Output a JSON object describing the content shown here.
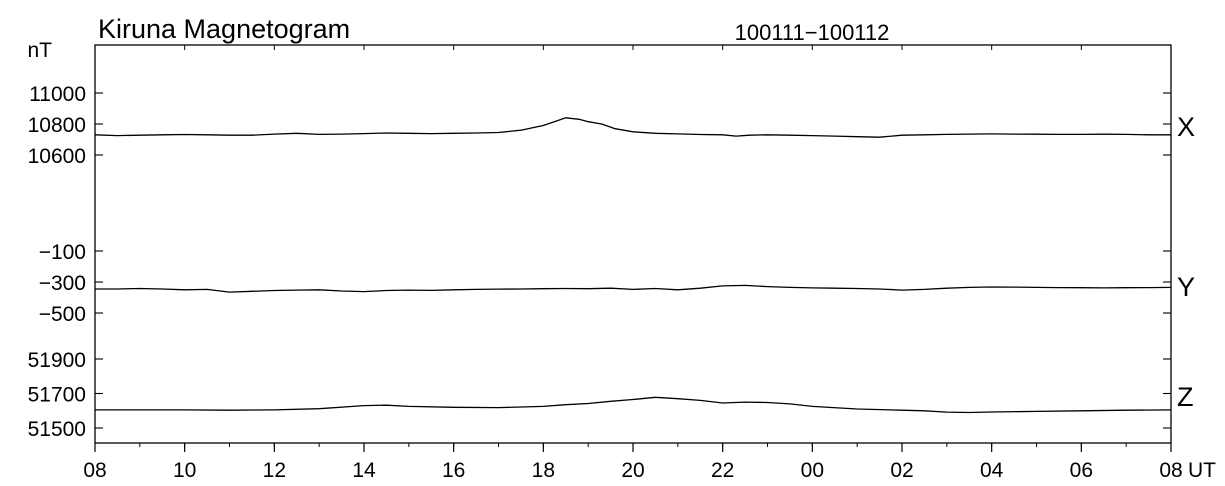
{
  "chart_data": {
    "type": "line",
    "title": "Kiruna Magnetogram",
    "subtitle": "100111−100112",
    "unit_label": "nT",
    "x_unit_label": "UT",
    "x_tick_labels": [
      "08",
      "10",
      "12",
      "14",
      "16",
      "18",
      "20",
      "22",
      "00",
      "02",
      "04",
      "06",
      "08"
    ],
    "x_hours_range": [
      0,
      24
    ],
    "grid": false,
    "panels": [
      {
        "name": "X",
        "y_ticks": [
          {
            "value": 11000,
            "label": "11000"
          },
          {
            "value": 10800,
            "label": "10800"
          },
          {
            "value": 10600,
            "label": "10600"
          }
        ],
        "ylim": [
          10600,
          11000
        ],
        "points": [
          [
            0,
            10730
          ],
          [
            0.5,
            10725
          ],
          [
            1,
            10728
          ],
          [
            1.5,
            10730
          ],
          [
            2,
            10732
          ],
          [
            2.5,
            10730
          ],
          [
            3,
            10728
          ],
          [
            3.5,
            10728
          ],
          [
            4,
            10735
          ],
          [
            4.5,
            10740
          ],
          [
            5,
            10733
          ],
          [
            5.5,
            10735
          ],
          [
            6,
            10738
          ],
          [
            6.5,
            10742
          ],
          [
            7,
            10740
          ],
          [
            7.5,
            10738
          ],
          [
            8,
            10740
          ],
          [
            8.5,
            10742
          ],
          [
            9,
            10745
          ],
          [
            9.5,
            10760
          ],
          [
            10,
            10790
          ],
          [
            10.3,
            10820
          ],
          [
            10.5,
            10840
          ],
          [
            10.8,
            10830
          ],
          [
            11,
            10815
          ],
          [
            11.3,
            10800
          ],
          [
            11.6,
            10770
          ],
          [
            12,
            10750
          ],
          [
            12.5,
            10740
          ],
          [
            13,
            10736
          ],
          [
            13.5,
            10732
          ],
          [
            14,
            10730
          ],
          [
            14.3,
            10722
          ],
          [
            14.6,
            10728
          ],
          [
            15,
            10730
          ],
          [
            15.5,
            10728
          ],
          [
            16,
            10725
          ],
          [
            16.5,
            10722
          ],
          [
            17,
            10718
          ],
          [
            17.5,
            10715
          ],
          [
            18,
            10728
          ],
          [
            18.5,
            10730
          ],
          [
            19,
            10733
          ],
          [
            19.5,
            10735
          ],
          [
            20,
            10736
          ],
          [
            20.5,
            10735
          ],
          [
            21,
            10734
          ],
          [
            21.5,
            10733
          ],
          [
            22,
            10733
          ],
          [
            22.5,
            10734
          ],
          [
            23,
            10733
          ],
          [
            23.5,
            10730
          ],
          [
            24,
            10730
          ]
        ]
      },
      {
        "name": "Y",
        "y_ticks": [
          {
            "value": -100,
            "label": "−100"
          },
          {
            "value": -300,
            "label": "−300"
          },
          {
            "value": -500,
            "label": "−500"
          }
        ],
        "ylim": [
          -500,
          -100
        ],
        "points": [
          [
            0,
            -345
          ],
          [
            0.5,
            -345
          ],
          [
            1,
            -342
          ],
          [
            1.5,
            -345
          ],
          [
            2,
            -350
          ],
          [
            2.5,
            -348
          ],
          [
            3,
            -365
          ],
          [
            3.5,
            -360
          ],
          [
            4,
            -355
          ],
          [
            4.5,
            -352
          ],
          [
            5,
            -350
          ],
          [
            5.5,
            -358
          ],
          [
            6,
            -362
          ],
          [
            6.5,
            -355
          ],
          [
            7,
            -352
          ],
          [
            7.5,
            -354
          ],
          [
            8,
            -350
          ],
          [
            8.5,
            -348
          ],
          [
            9,
            -346
          ],
          [
            9.5,
            -345
          ],
          [
            10,
            -343
          ],
          [
            10.5,
            -342
          ],
          [
            11,
            -343
          ],
          [
            11.5,
            -340
          ],
          [
            12,
            -348
          ],
          [
            12.5,
            -342
          ],
          [
            13,
            -350
          ],
          [
            13.5,
            -340
          ],
          [
            14,
            -325
          ],
          [
            14.5,
            -322
          ],
          [
            15,
            -330
          ],
          [
            15.5,
            -335
          ],
          [
            16,
            -338
          ],
          [
            16.5,
            -340
          ],
          [
            17,
            -342
          ],
          [
            17.5,
            -345
          ],
          [
            18,
            -352
          ],
          [
            18.5,
            -348
          ],
          [
            19,
            -340
          ],
          [
            19.5,
            -335
          ],
          [
            20,
            -332
          ],
          [
            20.5,
            -333
          ],
          [
            21,
            -335
          ],
          [
            21.5,
            -336
          ],
          [
            22,
            -337
          ],
          [
            22.5,
            -338
          ],
          [
            23,
            -337
          ],
          [
            23.5,
            -336
          ],
          [
            24,
            -335
          ]
        ]
      },
      {
        "name": "Z",
        "y_ticks": [
          {
            "value": 51900,
            "label": "51900"
          },
          {
            "value": 51700,
            "label": "51700"
          },
          {
            "value": 51500,
            "label": "51500"
          }
        ],
        "ylim": [
          51500,
          51900
        ],
        "points": [
          [
            0,
            51605
          ],
          [
            1,
            51605
          ],
          [
            2,
            51605
          ],
          [
            3,
            51603
          ],
          [
            4,
            51605
          ],
          [
            5,
            51612
          ],
          [
            6,
            51630
          ],
          [
            6.5,
            51632
          ],
          [
            7,
            51625
          ],
          [
            8,
            51620
          ],
          [
            9,
            51618
          ],
          [
            10,
            51625
          ],
          [
            10.5,
            51635
          ],
          [
            11,
            51642
          ],
          [
            11.5,
            51655
          ],
          [
            12,
            51665
          ],
          [
            12.5,
            51678
          ],
          [
            13,
            51670
          ],
          [
            13.5,
            51660
          ],
          [
            14,
            51645
          ],
          [
            14.5,
            51650
          ],
          [
            15,
            51648
          ],
          [
            15.5,
            51640
          ],
          [
            16,
            51625
          ],
          [
            17,
            51610
          ],
          [
            18,
            51603
          ],
          [
            18.5,
            51600
          ],
          [
            19,
            51592
          ],
          [
            19.5,
            51590
          ],
          [
            20,
            51593
          ],
          [
            21,
            51596
          ],
          [
            22,
            51600
          ],
          [
            23,
            51603
          ],
          [
            24,
            51605
          ]
        ]
      }
    ]
  }
}
